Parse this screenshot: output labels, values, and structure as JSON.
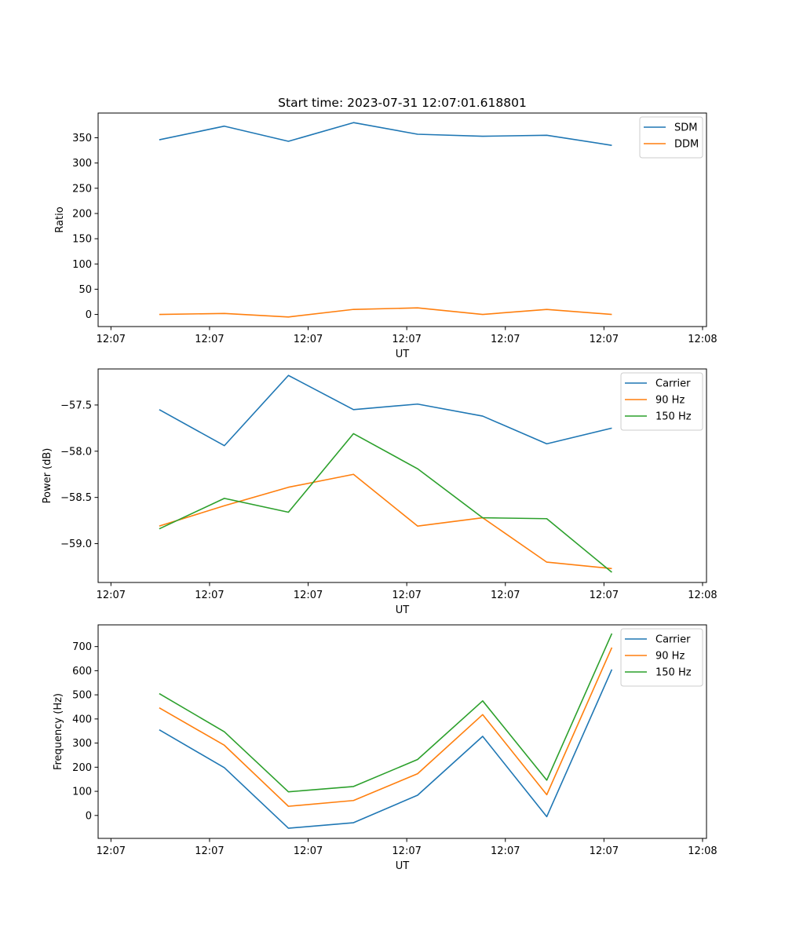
{
  "figure_title": "Start time: 2023-07-31 12:07:01.618801",
  "colors": {
    "blue": "#1f77b4",
    "orange": "#ff7f0e",
    "green": "#2ca02c",
    "axis": "#000000",
    "background": "#ffffff"
  },
  "chart_data": [
    {
      "type": "line",
      "title": "Start time: 2023-07-31 12:07:01.618801",
      "xlabel": "UT",
      "ylabel": "Ratio",
      "xlim": [
        -0.13,
        6.04
      ],
      "ylim": [
        -24,
        399
      ],
      "x_ticks": [
        0,
        1,
        2,
        3,
        4,
        5,
        6
      ],
      "x_tick_labels": [
        "12:07",
        "12:07",
        "12:07",
        "12:07",
        "12:07",
        "12:07",
        "12:08"
      ],
      "y_ticks": [
        0,
        50,
        100,
        150,
        200,
        250,
        300,
        350
      ],
      "y_tick_labels": [
        "0",
        "50",
        "100",
        "150",
        "200",
        "250",
        "300",
        "350"
      ],
      "x": [
        0.49,
        1.15,
        1.8,
        2.46,
        3.11,
        3.77,
        4.42,
        5.08
      ],
      "series": [
        {
          "name": "SDM",
          "color": "#1f77b4",
          "values": [
            346,
            373,
            343,
            380,
            357,
            353,
            355,
            335
          ]
        },
        {
          "name": "DDM",
          "color": "#ff7f0e",
          "values": [
            0,
            2,
            -5,
            10,
            13,
            0,
            10,
            0
          ]
        }
      ],
      "legend": "upper right"
    },
    {
      "type": "line",
      "title": "",
      "xlabel": "UT",
      "ylabel": "Power (dB)",
      "xlim": [
        -0.13,
        6.04
      ],
      "ylim": [
        -59.42,
        -57.11
      ],
      "x_ticks": [
        0,
        1,
        2,
        3,
        4,
        5,
        6
      ],
      "x_tick_labels": [
        "12:07",
        "12:07",
        "12:07",
        "12:07",
        "12:07",
        "12:07",
        "12:08"
      ],
      "y_ticks": [
        -59.0,
        -58.5,
        -58.0,
        -57.5
      ],
      "y_tick_labels": [
        "−59.0",
        "−58.5",
        "−58.0",
        "−57.5"
      ],
      "x": [
        0.49,
        1.15,
        1.8,
        2.46,
        3.11,
        3.77,
        4.42,
        5.08
      ],
      "series": [
        {
          "name": "Carrier",
          "color": "#1f77b4",
          "values": [
            -57.55,
            -57.94,
            -57.18,
            -57.55,
            -57.49,
            -57.62,
            -57.92,
            -57.75
          ]
        },
        {
          "name": "90 Hz",
          "color": "#ff7f0e",
          "values": [
            -58.81,
            -58.59,
            -58.39,
            -58.25,
            -58.81,
            -58.72,
            -59.2,
            -59.27
          ]
        },
        {
          "name": "150 Hz",
          "color": "#2ca02c",
          "values": [
            -58.84,
            -58.51,
            -58.66,
            -57.81,
            -58.19,
            -58.72,
            -58.73,
            -59.31
          ]
        }
      ],
      "legend": "upper right"
    },
    {
      "type": "line",
      "title": "",
      "xlabel": "UT",
      "ylabel": "Frequency (Hz)",
      "xlim": [
        -0.13,
        6.04
      ],
      "ylim": [
        -95,
        790
      ],
      "x_ticks": [
        0,
        1,
        2,
        3,
        4,
        5,
        6
      ],
      "x_tick_labels": [
        "12:07",
        "12:07",
        "12:07",
        "12:07",
        "12:07",
        "12:07",
        "12:08"
      ],
      "y_ticks": [
        0,
        100,
        200,
        300,
        400,
        500,
        600,
        700
      ],
      "y_tick_labels": [
        "0",
        "100",
        "200",
        "300",
        "400",
        "500",
        "600",
        "700"
      ],
      "x": [
        0.49,
        1.15,
        1.8,
        2.46,
        3.11,
        3.77,
        4.42,
        5.08
      ],
      "series": [
        {
          "name": "Carrier",
          "color": "#1f77b4",
          "values": [
            355,
            198,
            -53,
            -30,
            84,
            328,
            -5,
            605
          ]
        },
        {
          "name": "90 Hz",
          "color": "#ff7f0e",
          "values": [
            446,
            291,
            38,
            62,
            173,
            418,
            86,
            696
          ]
        },
        {
          "name": "150 Hz",
          "color": "#2ca02c",
          "values": [
            505,
            347,
            98,
            120,
            232,
            475,
            146,
            754
          ]
        }
      ],
      "legend": "upper right"
    }
  ]
}
